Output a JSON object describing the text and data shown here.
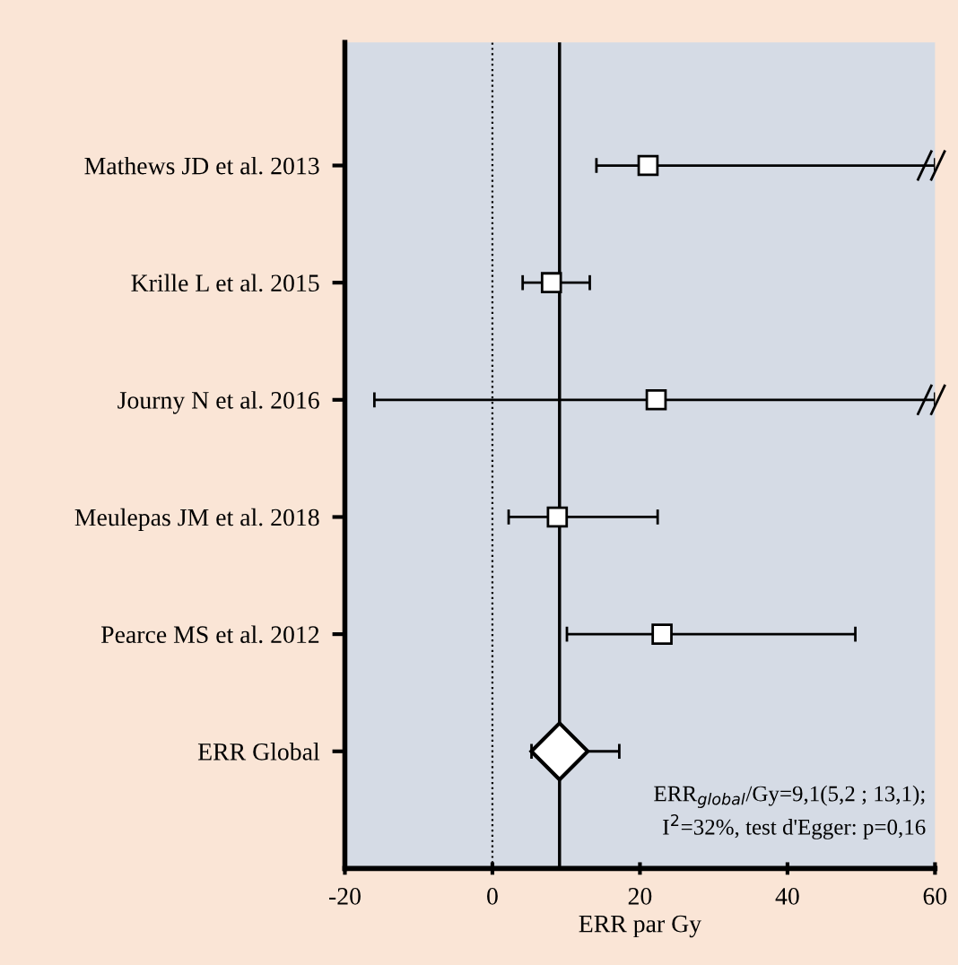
{
  "chart_data": {
    "type": "scatter",
    "orientation": "horizontal",
    "xlabel": "ERR par Gy",
    "categories": [
      "Mathews JD et al. 2013",
      "Krille L et al. 2015",
      "Journy N et al. 2016",
      "Meulepas JM et al. 2018",
      "Pearce MS et al. 2012",
      "ERR Global"
    ],
    "series": [
      {
        "color": "#ffffff",
        "marker": "square",
        "values": [
          21.1,
          8.0,
          22.2,
          8.8,
          23.0,
          null
        ],
        "errors": [
          [
            14.1,
            60
          ],
          [
            4.1,
            13.2
          ],
          [
            -16,
            60
          ],
          [
            2.2,
            22.4
          ],
          [
            10.1,
            49.2
          ],
          null
        ]
      },
      {
        "color": "#ffffff",
        "marker": "diamond",
        "values": [
          null,
          null,
          null,
          null,
          null,
          9.1
        ],
        "errors": [
          null,
          null,
          null,
          null,
          null,
          [
            5.3,
            17.2
          ]
        ]
      }
    ],
    "xlim": [
      -20,
      60
    ],
    "xticks": [
      -20,
      0,
      20,
      40,
      60
    ],
    "ref_lines": [
      {
        "axis": "x",
        "value": 0,
        "line_style": "dotted",
        "color": "#000000"
      },
      {
        "axis": "x",
        "value": 9.1,
        "line_style": "solid",
        "color": "#000000"
      }
    ],
    "annotations": [
      "ERR$_{global}$/Gy=9,1(5,2 ; 13,1);\nI$^{2}$=32%, test d'Egger: p=0,16"
    ],
    "grid": false,
    "legend": false
  }
}
